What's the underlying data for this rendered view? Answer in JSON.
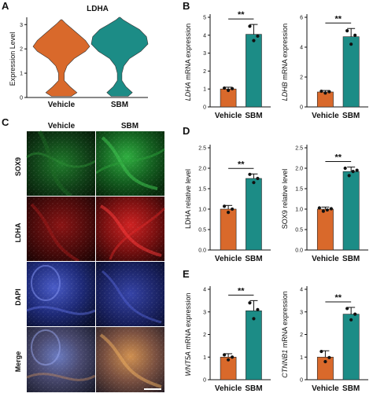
{
  "figure": {
    "panel_letters": [
      "A",
      "B",
      "C",
      "D",
      "E"
    ],
    "colors": {
      "vehicle": "#d9692b",
      "sbm": "#1c8c86",
      "axis": "#111111"
    }
  },
  "panel_c": {
    "columns": [
      "Vehicle",
      "SBM"
    ],
    "rows": [
      "SOX9",
      "LDHA",
      "DAPI",
      "Merge"
    ],
    "image_content": "fluorescence micrographs: green SOX9, red LDHA, blue DAPI, merge; scale bar bottom-right"
  },
  "chart_data": [
    {
      "panel": "A",
      "type": "violin",
      "title": "LDHA",
      "ylabel": "Expression Level",
      "categories": [
        "Vehicle",
        "SBM"
      ],
      "ylim": [
        0,
        3.3
      ],
      "yticks": [
        0,
        1,
        2,
        3
      ],
      "series": [
        {
          "category": "Vehicle",
          "color": "#d9692b",
          "density_profile": [
            [
              0.05,
              0.35
            ],
            [
              0.2,
              0.55
            ],
            [
              0.45,
              0.3
            ],
            [
              0.7,
              0.1
            ],
            [
              1.0,
              0.1
            ],
            [
              1.3,
              0.2
            ],
            [
              1.6,
              0.45
            ],
            [
              1.9,
              0.85
            ],
            [
              2.1,
              1.0
            ],
            [
              2.35,
              0.85
            ],
            [
              2.6,
              0.6
            ],
            [
              2.85,
              0.35
            ],
            [
              3.05,
              0.15
            ],
            [
              3.2,
              0.02
            ]
          ]
        },
        {
          "category": "SBM",
          "color": "#1c8c86",
          "density_profile": [
            [
              0.05,
              0.3
            ],
            [
              0.2,
              0.45
            ],
            [
              0.45,
              0.22
            ],
            [
              0.7,
              0.08
            ],
            [
              1.0,
              0.08
            ],
            [
              1.3,
              0.15
            ],
            [
              1.6,
              0.35
            ],
            [
              1.9,
              0.75
            ],
            [
              2.2,
              1.0
            ],
            [
              2.5,
              0.95
            ],
            [
              2.8,
              0.7
            ],
            [
              3.0,
              0.4
            ],
            [
              3.2,
              0.12
            ],
            [
              3.3,
              0.02
            ]
          ]
        }
      ]
    },
    {
      "panel": "B-left",
      "type": "bar",
      "ylabel_italic": "LDHA",
      "ylabel_rest": " mRNA expression",
      "categories": [
        "Vehicle",
        "SBM"
      ],
      "values": [
        1.0,
        4.05
      ],
      "errors": [
        0.1,
        0.55
      ],
      "points": [
        [
          1.05,
          0.92,
          1.02
        ],
        [
          4.5,
          3.7,
          3.95
        ]
      ],
      "ylim": [
        0,
        5
      ],
      "yticks": [
        0,
        1,
        2,
        3,
        4,
        5
      ],
      "significance": "**"
    },
    {
      "panel": "B-right",
      "type": "bar",
      "ylabel_italic": "LDHB",
      "ylabel_rest": " mRNA expression",
      "categories": [
        "Vehicle",
        "SBM"
      ],
      "values": [
        1.0,
        4.7
      ],
      "errors": [
        0.1,
        0.55
      ],
      "points": [
        [
          1.05,
          0.93,
          1.02
        ],
        [
          5.1,
          4.2,
          4.8
        ]
      ],
      "ylim": [
        0,
        6
      ],
      "yticks": [
        0,
        2,
        4,
        6
      ],
      "significance": "**"
    },
    {
      "panel": "D-left",
      "type": "bar",
      "ylabel_italic": "",
      "ylabel_rest": "LDHA relative level",
      "categories": [
        "Vehicle",
        "SBM"
      ],
      "values": [
        1.0,
        1.75
      ],
      "errors": [
        0.09,
        0.11
      ],
      "points": [
        [
          1.07,
          0.92,
          1.0
        ],
        [
          1.85,
          1.65,
          1.75
        ]
      ],
      "ylim": [
        0,
        2.5
      ],
      "yticks": [
        0.0,
        0.5,
        1.0,
        1.5,
        2.0,
        2.5
      ],
      "significance": "**"
    },
    {
      "panel": "D-right",
      "type": "bar",
      "ylabel_italic": "",
      "ylabel_rest": "SOX9 relative level",
      "categories": [
        "Vehicle",
        "SBM"
      ],
      "values": [
        1.0,
        1.92
      ],
      "errors": [
        0.05,
        0.11
      ],
      "points": [
        [
          1.03,
          0.95,
          0.98,
          1.01
        ],
        [
          2.0,
          1.82,
          1.92,
          1.95
        ]
      ],
      "ylim": [
        0,
        2.5
      ],
      "yticks": [
        0.0,
        0.5,
        1.0,
        1.5,
        2.0,
        2.5
      ],
      "significance": "**"
    },
    {
      "panel": "E-left",
      "type": "bar",
      "ylabel_italic": "WNT5A",
      "ylabel_rest": " mRNA expression",
      "categories": [
        "Vehicle",
        "SBM"
      ],
      "values": [
        1.0,
        3.05
      ],
      "errors": [
        0.15,
        0.45
      ],
      "points": [
        [
          1.1,
          0.88,
          1.0
        ],
        [
          3.4,
          2.7,
          3.1
        ]
      ],
      "ylim": [
        0,
        4
      ],
      "yticks": [
        0,
        1,
        2,
        3,
        4
      ],
      "significance": "**"
    },
    {
      "panel": "E-right",
      "type": "bar",
      "ylabel_italic": "CTNNB1",
      "ylabel_rest": " mRNA expression",
      "categories": [
        "Vehicle",
        "SBM"
      ],
      "values": [
        1.0,
        2.9
      ],
      "errors": [
        0.28,
        0.3
      ],
      "points": [
        [
          1.25,
          0.8,
          0.98
        ],
        [
          3.15,
          2.65,
          2.9
        ]
      ],
      "ylim": [
        0,
        4
      ],
      "yticks": [
        0,
        1,
        2,
        3,
        4
      ],
      "significance": "**"
    }
  ]
}
